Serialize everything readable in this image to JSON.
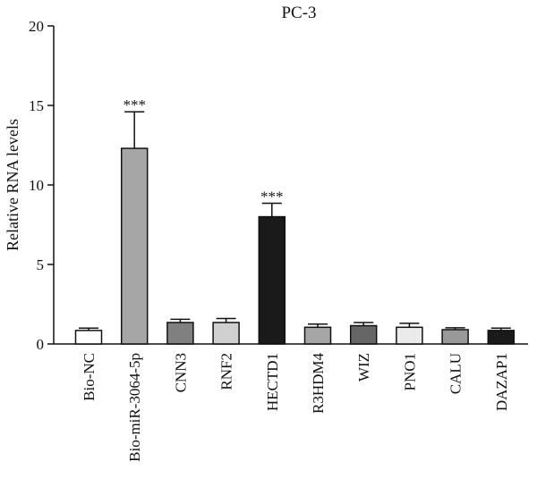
{
  "chart_data": {
    "type": "bar",
    "title": "PC-3",
    "xlabel": "",
    "ylabel": "Relative RNA levels",
    "ylim": [
      0,
      20
    ],
    "yticks": [
      0,
      5,
      10,
      15,
      20
    ],
    "grid": false,
    "categories": [
      "Bio-NC",
      "Bio-miR-3064-5p",
      "CNN3",
      "RNF2",
      "HECTD1",
      "R3HDM4",
      "WIZ",
      "PNO1",
      "CALU",
      "DAZAP1"
    ],
    "values": [
      0.85,
      12.3,
      1.35,
      1.35,
      8.0,
      1.05,
      1.15,
      1.05,
      0.9,
      0.85
    ],
    "errors": [
      0.15,
      2.3,
      0.2,
      0.25,
      0.85,
      0.2,
      0.2,
      0.25,
      0.12,
      0.15
    ],
    "significance": [
      "",
      "***",
      "",
      "",
      "***",
      "",
      "",
      "",
      "",
      ""
    ],
    "colors": [
      "#ffffff",
      "#a6a6a6",
      "#808080",
      "#d0d0d0",
      "#1a1a1a",
      "#a6a6a6",
      "#666666",
      "#ebebeb",
      "#999999",
      "#1a1a1a"
    ]
  }
}
